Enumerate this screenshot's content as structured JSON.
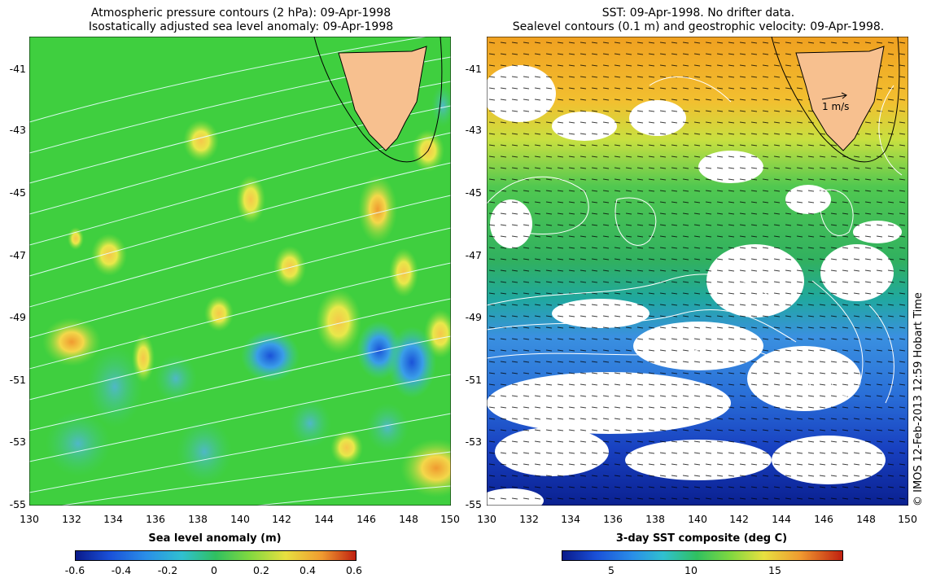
{
  "left_panel": {
    "title_line1": "Atmospheric pressure contours (2 hPa): 09-Apr-1998",
    "title_line2": "Isostatically adjusted sea level anomaly: 09-Apr-1998",
    "x_ticks": [
      "130",
      "132",
      "134",
      "136",
      "138",
      "140",
      "142",
      "144",
      "146",
      "148",
      "150"
    ],
    "y_ticks": [
      "-41",
      "-43",
      "-45",
      "-47",
      "-49",
      "-51",
      "-53",
      "-55"
    ],
    "colorbar_title": "Sea level anomaly (m)",
    "colorbar_ticks": [
      "-0.6",
      "-0.4",
      "-0.2",
      "0",
      "0.2",
      "0.4",
      "0.6"
    ]
  },
  "right_panel": {
    "title_line1": "SST: 09-Apr-1998. No drifter data.",
    "title_line2": "Sealevel contours (0.1 m) and geostrophic velocity: 09-Apr-1998.",
    "x_ticks": [
      "130",
      "132",
      "134",
      "136",
      "138",
      "140",
      "142",
      "144",
      "146",
      "148",
      "150"
    ],
    "y_ticks": [
      "-41",
      "-43",
      "-45",
      "-47",
      "-49",
      "-51",
      "-53",
      "-55"
    ],
    "velocity_scale_label": "1 m/s",
    "colorbar_title": "3-day SST composite (deg C)",
    "colorbar_ticks": [
      "5",
      "10",
      "15"
    ]
  },
  "credit": "© IMOS 12-Feb-2013 12:59 Hobart Time",
  "colors": {
    "land": "#f7c08f",
    "sla_background": "#3fcf3f",
    "sla_positive": "#f0e040",
    "sla_negative": "#3a8ee8"
  }
}
